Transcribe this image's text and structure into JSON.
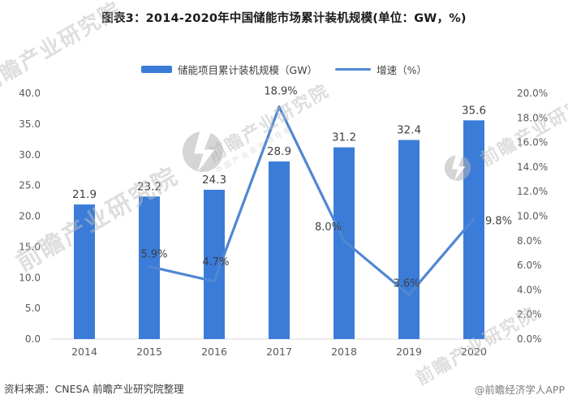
{
  "title": "图表3：2014-2020年中国储能市场累计装机规模(单位：GW，%)",
  "footer": {
    "source": "资料来源：CNESA 前瞻产业研究院整理",
    "credit": "@前瞻经济学人APP"
  },
  "watermark": {
    "text": "前瞻产业研究院",
    "subtext": "中国产业咨询领导者"
  },
  "colors": {
    "bar": "#3b7cd9",
    "line": "#5187d2",
    "axis_line": "#d9d9d9",
    "axis_label": "#595959",
    "data_label": "#404040",
    "title": "#1a1a1a"
  },
  "chart_data": {
    "type": "bar+line combo",
    "title": "图表3：2014-2020年中国储能市场累计装机规模(单位：GW，%)",
    "categories": [
      "2014",
      "2015",
      "2016",
      "2017",
      "2018",
      "2019",
      "2020"
    ],
    "series": [
      {
        "name": "储能项目累计装机规模（GW）",
        "type": "bar",
        "axis": "left",
        "values": [
          21.9,
          23.2,
          24.3,
          28.9,
          31.2,
          32.4,
          35.6
        ],
        "labels": [
          "21.9",
          "23.2",
          "24.3",
          "28.9",
          "31.2",
          "32.4",
          "35.6"
        ]
      },
      {
        "name": "增速（%）",
        "type": "line",
        "axis": "right",
        "values": [
          null,
          5.9,
          4.7,
          18.9,
          8.0,
          3.6,
          9.8
        ],
        "labels": [
          null,
          "5.9%",
          "4.7%",
          "18.9%",
          "8.0%",
          "3.6%",
          "9.8%"
        ]
      }
    ],
    "left_axis": {
      "min": 0,
      "max": 40,
      "step": 5,
      "tick_suffix": "",
      "tick_decimals": 1,
      "ticks": [
        "0.0",
        "5.0",
        "10.0",
        "15.0",
        "20.0",
        "25.0",
        "30.0",
        "35.0",
        "40.0"
      ]
    },
    "right_axis": {
      "min": 0,
      "max": 20,
      "step": 2,
      "tick_suffix": "%",
      "tick_decimals": 1,
      "ticks": [
        "0.0%",
        "2.0%",
        "4.0%",
        "6.0%",
        "8.0%",
        "10.0%",
        "12.0%",
        "14.0%",
        "16.0%",
        "18.0%",
        "20.0%"
      ]
    },
    "grid": false,
    "legend_position": "top"
  }
}
